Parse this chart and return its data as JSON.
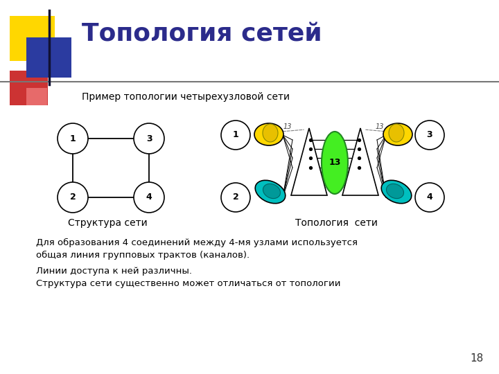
{
  "title": "Топология сетей",
  "title_color": "#2B2B8B",
  "subtitle": "Пример топологии четырехузловой сети",
  "subtitle_size": 10,
  "bg_color": "#FFFFFF",
  "label_struct": "Структура сети",
  "label_topo": "Топология  сети",
  "text_lines": [
    "Для образования 4 соединений между 4-мя узлами используется",
    "общая линия групповых трактов (каналов).",
    "Линии доступа к ней различны.",
    "Структура сети существенно может отличаться от топологии"
  ],
  "page_number": "18"
}
